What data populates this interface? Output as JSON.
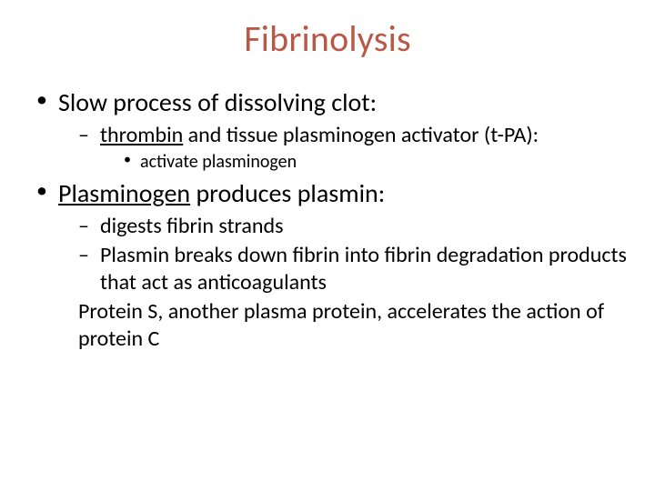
{
  "colors": {
    "title": "#b85948",
    "body": "#000000",
    "background": "#ffffff"
  },
  "typography": {
    "title_fontsize": 40,
    "lvl1_fontsize": 28,
    "lvl2_fontsize": 24,
    "lvl3_fontsize": 20,
    "font_family": "Calibri"
  },
  "title": "Fibrinolysis",
  "bullets": {
    "b1": "Slow process of dissolving clot:",
    "b1_1_pre": "thrombin",
    "b1_1_post": " and tissue plasminogen activator (t-PA):",
    "b1_1_1": "activate plasminogen",
    "b2_pre": "Plasminogen",
    "b2_post": " produces plasmin:",
    "b2_1": "digests fibrin strands",
    "b2_2": "Plasmin breaks down fibrin into fibrin degradation products that act as anticoagulants",
    "b2_3": "Protein S, another plasma protein, accelerates the action of protein C"
  }
}
